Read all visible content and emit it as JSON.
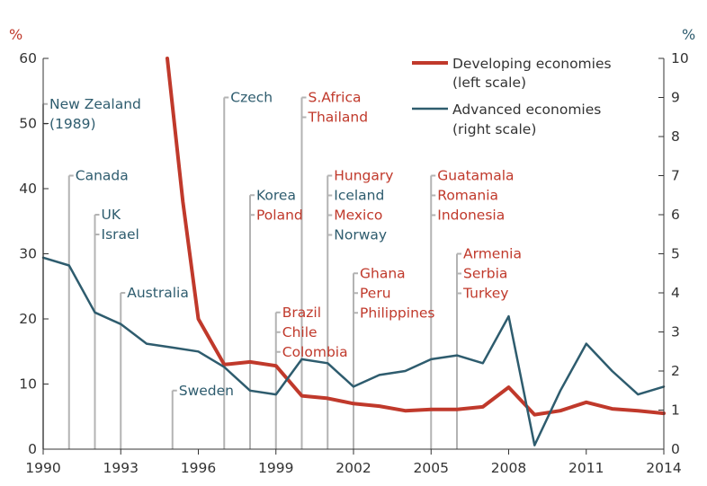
{
  "chart_data": {
    "type": "line",
    "title": "",
    "left_unit": "%",
    "right_unit": "%",
    "x_ticks": [
      1990,
      1993,
      1996,
      1999,
      2002,
      2005,
      2008,
      2011,
      2014
    ],
    "xlim": [
      1990,
      2014
    ],
    "ylim_left": [
      0,
      60
    ],
    "ylim_right": [
      0,
      10
    ],
    "left_ticks": [
      0,
      10,
      20,
      30,
      40,
      50,
      60
    ],
    "right_ticks": [
      0,
      1,
      2,
      3,
      4,
      5,
      6,
      7,
      8,
      9,
      10
    ],
    "grid": false,
    "legend_position": "top-right",
    "colors": {
      "developing": "#c0392b",
      "advanced": "#2e5c6e",
      "left_axis": "#c0392b",
      "right_axis": "#2e5c6e",
      "marker": "#b3b3b3"
    },
    "series": [
      {
        "key": "developing",
        "name": "Developing economies",
        "sub": "(left scale)",
        "axis": "left",
        "x": [
          1994.8,
          1995.4,
          1996,
          1997,
          1998,
          1999,
          2000,
          2001,
          2002,
          2003,
          2004,
          2005,
          2006,
          2007,
          2008,
          2009,
          2010,
          2011,
          2012,
          2013,
          2014
        ],
        "values": [
          60,
          38,
          20,
          13,
          13.4,
          12.8,
          8.2,
          7.8,
          7.0,
          6.6,
          5.9,
          6.1,
          6.1,
          6.5,
          9.5,
          5.3,
          5.9,
          7.2,
          6.2,
          5.9,
          5.5
        ]
      },
      {
        "key": "advanced",
        "name": "Advanced economies",
        "sub": "(right scale)",
        "axis": "right",
        "x": [
          1990,
          1991,
          1992,
          1993,
          1994,
          1995,
          1996,
          1997,
          1998,
          1999,
          2000,
          2001,
          2002,
          2003,
          2004,
          2005,
          2006,
          2007,
          2008,
          2009,
          2010,
          2011,
          2012,
          2013,
          2014
        ],
        "values": [
          4.9,
          4.7,
          3.5,
          3.2,
          2.7,
          2.6,
          2.5,
          2.1,
          1.5,
          1.4,
          2.3,
          2.2,
          1.6,
          1.9,
          2.0,
          2.3,
          2.4,
          2.2,
          3.4,
          0.1,
          1.5,
          2.7,
          2.0,
          1.4,
          1.6
        ]
      }
    ],
    "annotations": [
      {
        "year": 1990,
        "top": 53,
        "labels": [
          {
            "text": "New Zealand",
            "color": "advanced"
          },
          {
            "text": "(1989)",
            "color": "advanced"
          }
        ]
      },
      {
        "year": 1991,
        "top": 42,
        "labels": [
          {
            "text": "Canada",
            "color": "advanced"
          }
        ]
      },
      {
        "year": 1992,
        "top": 36,
        "labels": [
          {
            "text": "UK",
            "color": "advanced"
          },
          {
            "text": "Israel",
            "color": "advanced"
          }
        ]
      },
      {
        "year": 1993,
        "top": 24,
        "labels": [
          {
            "text": "Australia",
            "color": "advanced"
          }
        ]
      },
      {
        "year": 1995,
        "top": 9,
        "labels": [
          {
            "text": "Sweden",
            "color": "advanced"
          }
        ]
      },
      {
        "year": 1997,
        "top": 54,
        "labels": [
          {
            "text": "Czech",
            "color": "advanced"
          }
        ]
      },
      {
        "year": 1998,
        "top": 39,
        "labels": [
          {
            "text": "Korea",
            "color": "advanced"
          },
          {
            "text": "Poland",
            "color": "developing"
          }
        ]
      },
      {
        "year": 1999,
        "top": 21,
        "labels": [
          {
            "text": "Brazil",
            "color": "developing"
          },
          {
            "text": "Chile",
            "color": "developing"
          },
          {
            "text": "Colombia",
            "color": "developing"
          }
        ]
      },
      {
        "year": 2000,
        "top": 54,
        "labels": [
          {
            "text": "S.Africa",
            "color": "developing"
          },
          {
            "text": "Thailand",
            "color": "developing"
          }
        ]
      },
      {
        "year": 2001,
        "top": 42,
        "labels": [
          {
            "text": "Hungary",
            "color": "developing"
          },
          {
            "text": "Iceland",
            "color": "advanced"
          },
          {
            "text": "Mexico",
            "color": "developing"
          },
          {
            "text": "Norway",
            "color": "advanced"
          }
        ]
      },
      {
        "year": 2002,
        "top": 27,
        "labels": [
          {
            "text": "Ghana",
            "color": "developing"
          },
          {
            "text": "Peru",
            "color": "developing"
          },
          {
            "text": "Philippines",
            "color": "developing"
          }
        ]
      },
      {
        "year": 2005,
        "top": 42,
        "labels": [
          {
            "text": "Guatamala",
            "color": "developing"
          },
          {
            "text": "Romania",
            "color": "developing"
          },
          {
            "text": "Indonesia",
            "color": "developing"
          }
        ]
      },
      {
        "year": 2006,
        "top": 30,
        "labels": [
          {
            "text": "Armenia",
            "color": "developing"
          },
          {
            "text": "Serbia",
            "color": "developing"
          },
          {
            "text": "Turkey",
            "color": "developing"
          }
        ]
      }
    ]
  }
}
